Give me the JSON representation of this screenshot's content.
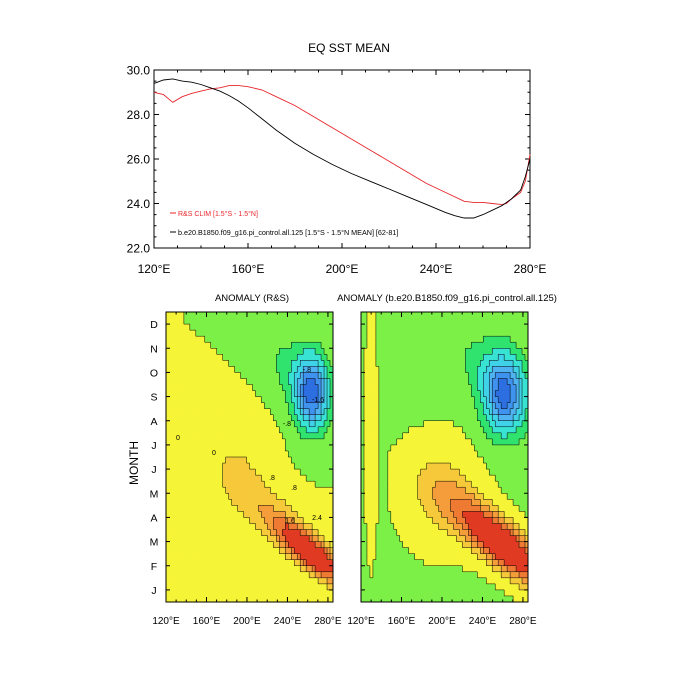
{
  "figure": {
    "top_chart": {
      "type": "line",
      "title": "EQ SST MEAN",
      "xlim": [
        120,
        280
      ],
      "ylim": [
        22.0,
        30.0
      ],
      "x_ticks": [
        120,
        160,
        200,
        240,
        280
      ],
      "x_tick_labels": [
        "120°E",
        "160°E",
        "200°E",
        "240°E",
        "280°E"
      ],
      "y_ticks": [
        22.0,
        24.0,
        26.0,
        28.0,
        30.0
      ],
      "y_tick_labels": [
        "22.0",
        "24.0",
        "26.0",
        "28.0",
        "30.0"
      ],
      "legend": {
        "position": "bottom-left",
        "red_label": "R&S CLIM [1.5°S - 1.5°N]",
        "black_label": "b.e20.B1850.f09_g16.pi_control.all.125 [1.5°S - 1.5°N MEAN] [62-81]"
      },
      "series": [
        {
          "color": "#e8252a",
          "x": [
            120,
            124,
            128,
            132,
            136,
            140,
            144,
            148,
            152,
            156,
            160,
            166,
            172,
            180,
            188,
            196,
            204,
            212,
            220,
            228,
            236,
            244,
            252,
            256,
            260,
            264,
            268,
            270,
            272,
            276,
            278,
            280
          ],
          "y": [
            29.0,
            28.9,
            28.55,
            28.8,
            28.95,
            29.05,
            29.15,
            29.2,
            29.3,
            29.3,
            29.25,
            29.1,
            28.8,
            28.4,
            27.9,
            27.4,
            26.9,
            26.4,
            25.9,
            25.4,
            24.9,
            24.5,
            24.1,
            24.05,
            24.05,
            24.0,
            23.95,
            24.0,
            24.2,
            24.5,
            25.0,
            26.2
          ]
        },
        {
          "color": "#000000",
          "x": [
            120,
            124,
            128,
            132,
            136,
            140,
            144,
            148,
            152,
            156,
            160,
            166,
            172,
            180,
            188,
            196,
            204,
            212,
            220,
            228,
            236,
            244,
            248,
            252,
            256,
            260,
            264,
            268,
            272,
            276,
            278,
            280
          ],
          "y": [
            29.4,
            29.55,
            29.6,
            29.5,
            29.45,
            29.35,
            29.2,
            29.05,
            28.85,
            28.6,
            28.3,
            27.8,
            27.3,
            26.7,
            26.2,
            25.75,
            25.35,
            25.0,
            24.65,
            24.3,
            23.95,
            23.6,
            23.45,
            23.35,
            23.35,
            23.5,
            23.7,
            23.9,
            24.2,
            24.6,
            25.2,
            26.0
          ]
        }
      ]
    },
    "anomaly_left": {
      "type": "heatmap",
      "title": "ANOMALY (R&S)",
      "ylabel": "MONTH",
      "months": [
        "J",
        "F",
        "M",
        "A",
        "M",
        "J",
        "J",
        "A",
        "S",
        "O",
        "N",
        "D"
      ],
      "x_tick_labels": [
        "120°E",
        "160°E",
        "200°E",
        "240°E",
        "280°E"
      ],
      "xlim": [
        120,
        285
      ],
      "model": {
        "background": 0.6,
        "warm": {
          "amp": 2.5,
          "lon": 264,
          "month": 2.0,
          "lon_scale": 18,
          "month_scale": 1.2,
          "tilt": -0.055
        },
        "cold": {
          "amp": -2.45,
          "lon": 264,
          "month": 8.7,
          "lon_scale": 16,
          "month_scale": 1.5,
          "tilt": 0.0
        },
        "ridge": {
          "amp": 0.35,
          "lon": 190,
          "month": 5.5,
          "lon_scale": 30,
          "month_scale": 2.2,
          "tilt": 0.0
        },
        "west_band": {
          "amp": 0.25,
          "lon": 124,
          "month": 7.0,
          "lon_scale": 4,
          "month_scale": 5.0,
          "tilt": 0.0
        }
      }
    },
    "anomaly_right": {
      "type": "heatmap",
      "title": "ANOMALY (b.e20.B1850.f09_g16.pi_control.all.125)",
      "months": [
        "J",
        "F",
        "M",
        "A",
        "M",
        "J",
        "J",
        "A",
        "S",
        "O",
        "N",
        "D"
      ],
      "x_tick_labels": [
        "120°E",
        "160°E",
        "200°E",
        "240°E",
        "280°E"
      ],
      "xlim": [
        120,
        285
      ],
      "model": {
        "background": 0.55,
        "warm": {
          "amp": 2.45,
          "lon": 262,
          "month": 2.3,
          "lon_scale": 24,
          "month_scale": 1.5,
          "tilt": -0.05
        },
        "cold": {
          "amp": -2.3,
          "lon": 262,
          "month": 8.6,
          "lon_scale": 20,
          "month_scale": 1.6,
          "tilt": 0.0
        },
        "ridge": {
          "amp": 0.5,
          "lon": 200,
          "month": 4.5,
          "lon_scale": 35,
          "month_scale": 2.0,
          "tilt": 0.0
        },
        "west_band": {
          "amp": 0.2,
          "lon": 130,
          "month": 7.0,
          "lon_scale": 6,
          "month_scale": 5.0,
          "tilt": 0.0
        }
      }
    },
    "contour_levels": [
      -2.4,
      -2.0,
      -1.6,
      -1.2,
      -0.8,
      -0.4,
      0.0,
      0.4,
      0.8,
      1.2,
      1.6,
      2.0,
      2.4
    ],
    "contour_labels": [
      "-1.6",
      "-.8",
      "-.8",
      "0",
      "0",
      ".8",
      ".8",
      "1.6",
      "2.4",
      "-.8",
      ".8",
      "1.6"
    ],
    "colors": {
      "deep_blue": "#1a3fd0",
      "blue": "#2d6fe0",
      "light_blue": "#3f93ee",
      "sky": "#4fb3f2",
      "cyan": "#3fd2e8",
      "aqua": "#39e3d4",
      "green": "#30e36e",
      "lime": "#7cf047",
      "yellow": "#f6f436",
      "gold": "#f6c93a",
      "orange": "#f59d3a",
      "dark_orange": "#ee7a33",
      "red": "#e03a22"
    }
  }
}
